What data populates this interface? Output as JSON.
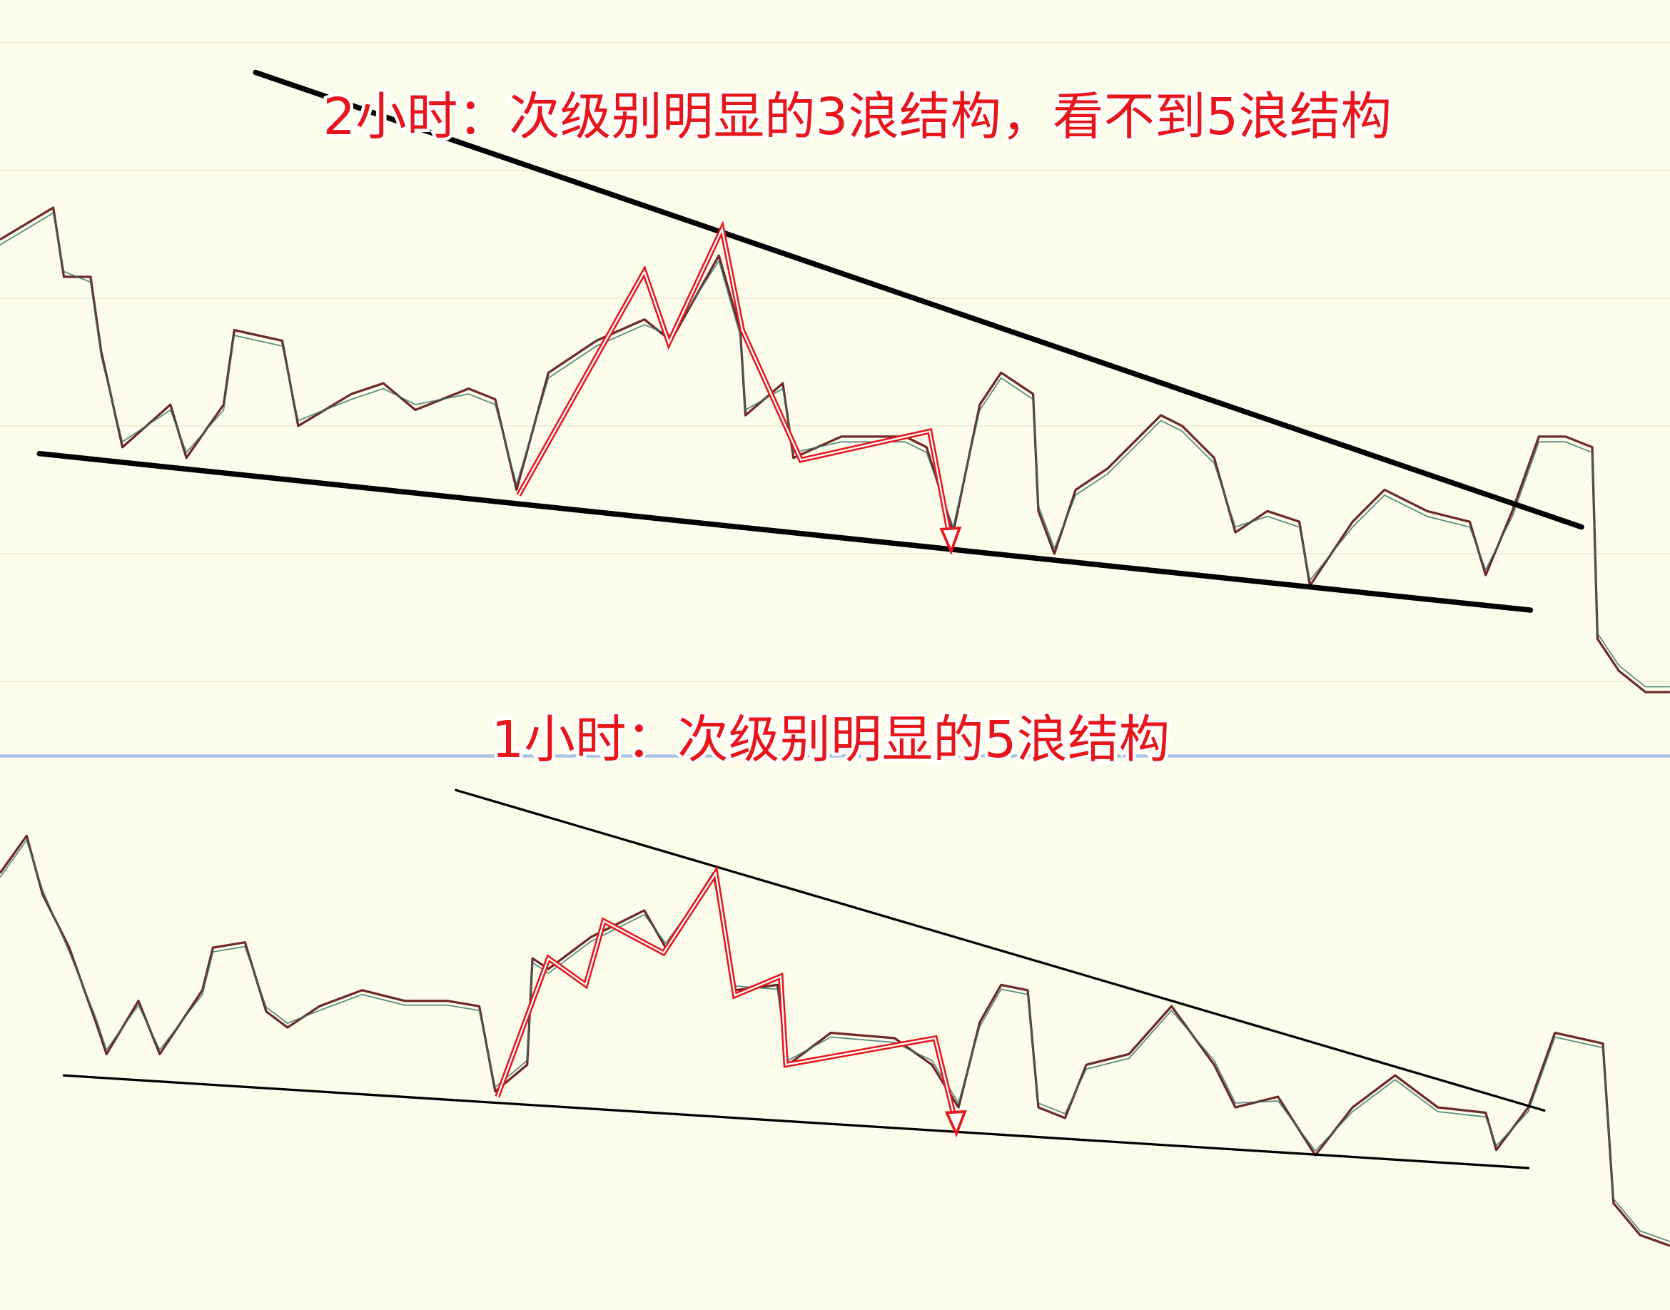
{
  "top_panel": {
    "title": "2小时：次级别明显的3浪结构，看不到5浪结构"
  },
  "bottom_panel": {
    "title": "1小时：次级别明显的5浪结构"
  }
}
